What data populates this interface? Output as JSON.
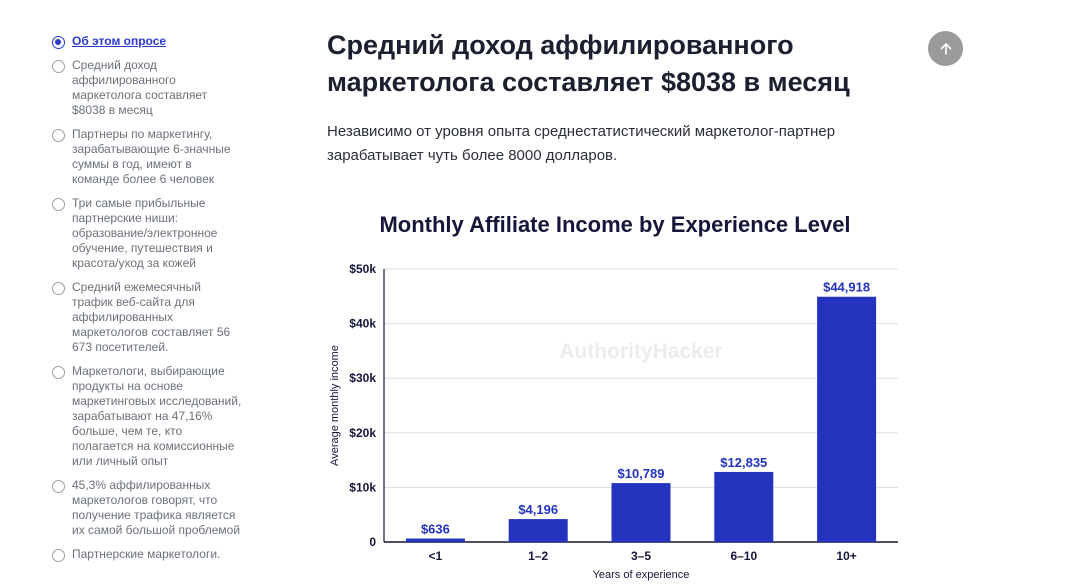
{
  "toc": {
    "items": [
      {
        "label": "Об этом опросе",
        "active": true
      },
      {
        "label": "Средний доход аффилированного маркетолога составляет $8038 в месяц",
        "active": false
      },
      {
        "label": "Партнеры по маркетингу, зарабатывающие 6-значные суммы в год, имеют в команде более 6 человек",
        "active": false
      },
      {
        "label": "Три самые прибыльные партнерские ниши: образование/электронное обучение, путешествия и красота/уход за кожей",
        "active": false
      },
      {
        "label": "Средний ежемесячный трафик веб-сайта для аффилированных маркетологов составляет 56 673 посетителей.",
        "active": false
      },
      {
        "label": "Маркетологи, выбирающие продукты на основе маркетинговых исследований, зарабатывают на 47,16% больше, чем те, кто полагается на комиссионные или личный опыт",
        "active": false
      },
      {
        "label": "45,3% аффилированных маркетологов говорят, что получение трафика является их самой большой проблемой",
        "active": false
      },
      {
        "label": "Партнерские маркетологи.",
        "active": false
      }
    ]
  },
  "article": {
    "headline": "Средний доход аффилированного маркетолога составляет $8038 в месяц",
    "intro": "Независимо от уровня опыта среднестатистический маркетолог-партнер зарабатывает чуть более 8000 долларов."
  },
  "icons": {
    "scroll_top": "arrow-up-icon"
  },
  "colors": {
    "bar": "#2433bd",
    "accent": "#2a3acf",
    "heading": "#15163a"
  },
  "chart_data": {
    "type": "bar",
    "title": "Monthly Affiliate Income by Experience Level",
    "xlabel": "Years of experience",
    "ylabel": "Average monthly income",
    "watermark": "AuthorityHacker",
    "categories": [
      "<1",
      "1–2",
      "3–5",
      "6–10",
      "10+"
    ],
    "values": [
      636,
      4196,
      10789,
      12835,
      44918
    ],
    "value_labels": [
      "$636",
      "$4,196",
      "$10,789",
      "$12,835",
      "$44,918"
    ],
    "ylim": [
      0,
      50000
    ],
    "yticks": [
      0,
      10000,
      20000,
      30000,
      40000,
      50000
    ],
    "ytick_labels": [
      "0",
      "$10k",
      "$20k",
      "$30k",
      "$40k",
      "$50k"
    ],
    "grid": true,
    "legend": "none"
  }
}
